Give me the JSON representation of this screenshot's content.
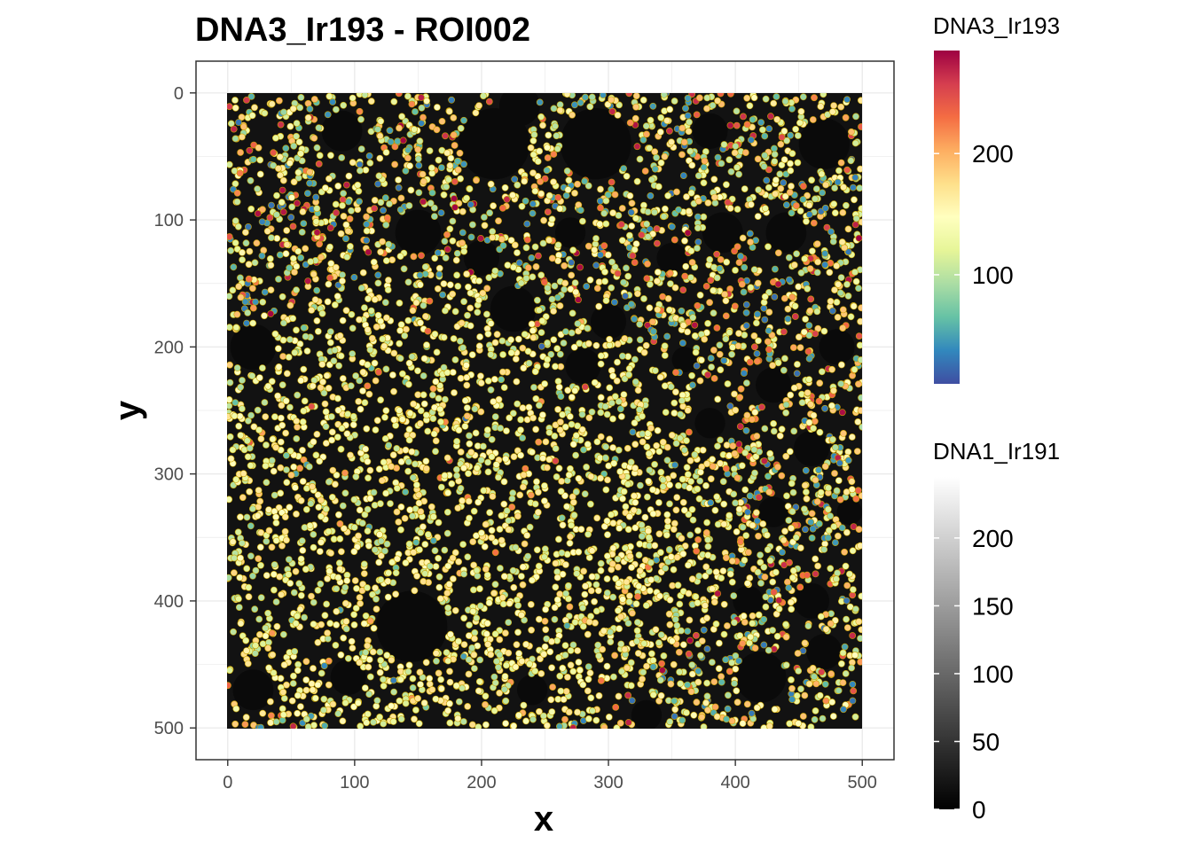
{
  "chart_data": {
    "type": "scatter",
    "title": "DNA3_Ir193 - ROI002",
    "xlabel": "x",
    "ylabel": "y",
    "xlim": [
      -25,
      525
    ],
    "ylim": [
      -25,
      525
    ],
    "y_reversed": true,
    "x_ticks": [
      "0",
      "100",
      "200",
      "300",
      "400",
      "500"
    ],
    "y_ticks": [
      "0",
      "100",
      "200",
      "300",
      "400",
      "500"
    ],
    "grid": true,
    "background_image": "DNA1_Ir191 intensity (grayscale)",
    "cell_outline_color": "#d4a800",
    "color_scale": {
      "name": "DNA3_Ir193",
      "palette": "Spectral",
      "colors": [
        "#3f4ea2",
        "#3288bd",
        "#66c2a5",
        "#abdda4",
        "#e6f598",
        "#ffffbf",
        "#fee08b",
        "#fdae61",
        "#f46d43",
        "#d53e4f",
        "#9e0142"
      ],
      "range": [
        10,
        285
      ],
      "ticks": [
        "100",
        "200"
      ]
    },
    "background_scale": {
      "name": "DNA1_Ir191",
      "colors": [
        "#000000",
        "#ffffff"
      ],
      "range": [
        0,
        245
      ],
      "ticks": [
        "0",
        "50",
        "100",
        "150",
        "200"
      ]
    },
    "holes": [
      {
        "x": 20,
        "y": 200,
        "r": 18
      },
      {
        "x": 145,
        "y": 420,
        "r": 28
      },
      {
        "x": 95,
        "y": 460,
        "r": 14
      },
      {
        "x": 20,
        "y": 470,
        "r": 16
      },
      {
        "x": 90,
        "y": 30,
        "r": 16
      },
      {
        "x": 210,
        "y": 40,
        "r": 28
      },
      {
        "x": 230,
        "y": 10,
        "r": 16
      },
      {
        "x": 290,
        "y": 40,
        "r": 28
      },
      {
        "x": 380,
        "y": 30,
        "r": 14
      },
      {
        "x": 470,
        "y": 40,
        "r": 20
      },
      {
        "x": 150,
        "y": 110,
        "r": 18
      },
      {
        "x": 200,
        "y": 130,
        "r": 14
      },
      {
        "x": 225,
        "y": 170,
        "r": 18
      },
      {
        "x": 300,
        "y": 180,
        "r": 14
      },
      {
        "x": 350,
        "y": 130,
        "r": 12
      },
      {
        "x": 390,
        "y": 110,
        "r": 16
      },
      {
        "x": 440,
        "y": 110,
        "r": 16
      },
      {
        "x": 270,
        "y": 110,
        "r": 12
      },
      {
        "x": 280,
        "y": 215,
        "r": 14
      },
      {
        "x": 360,
        "y": 210,
        "r": 10
      },
      {
        "x": 430,
        "y": 230,
        "r": 14
      },
      {
        "x": 480,
        "y": 200,
        "r": 14
      },
      {
        "x": 380,
        "y": 260,
        "r": 12
      },
      {
        "x": 460,
        "y": 280,
        "r": 14
      },
      {
        "x": 430,
        "y": 330,
        "r": 12
      },
      {
        "x": 490,
        "y": 330,
        "r": 10
      },
      {
        "x": 410,
        "y": 400,
        "r": 12
      },
      {
        "x": 460,
        "y": 400,
        "r": 14
      },
      {
        "x": 420,
        "y": 460,
        "r": 20
      },
      {
        "x": 470,
        "y": 440,
        "r": 14
      },
      {
        "x": 330,
        "y": 490,
        "r": 12
      },
      {
        "x": 240,
        "y": 470,
        "r": 12
      }
    ]
  }
}
